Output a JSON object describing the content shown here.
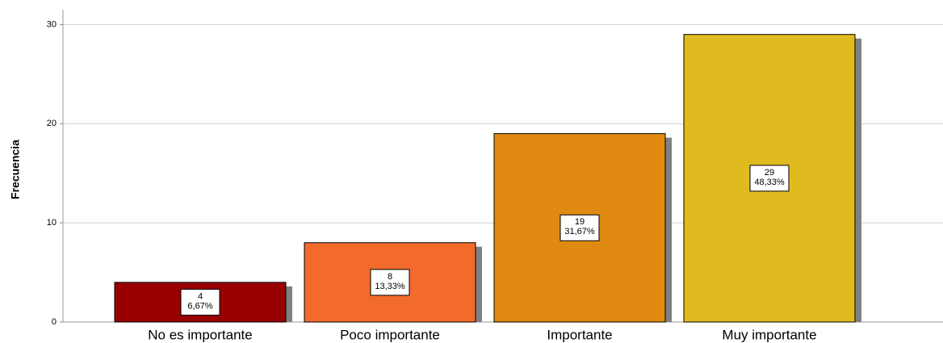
{
  "chart_data": {
    "type": "bar",
    "y_axis_label": "Frecuencia",
    "categories": [
      "No es importante",
      "Poco importante",
      "Importante",
      "Muy importante"
    ],
    "values": [
      4,
      8,
      19,
      29
    ],
    "percentages": [
      6.67,
      13.33,
      31.67,
      48.33
    ],
    "percentage_labels": [
      "6,67%",
      "13,33%",
      "31,67%",
      "48,33%"
    ],
    "colors": [
      "#990000",
      "#f26b2d",
      "#e08a12",
      "#e0bb20"
    ],
    "ylim": [
      0,
      31.5
    ],
    "yticks": [
      0,
      10,
      20,
      30
    ],
    "grid": true
  }
}
